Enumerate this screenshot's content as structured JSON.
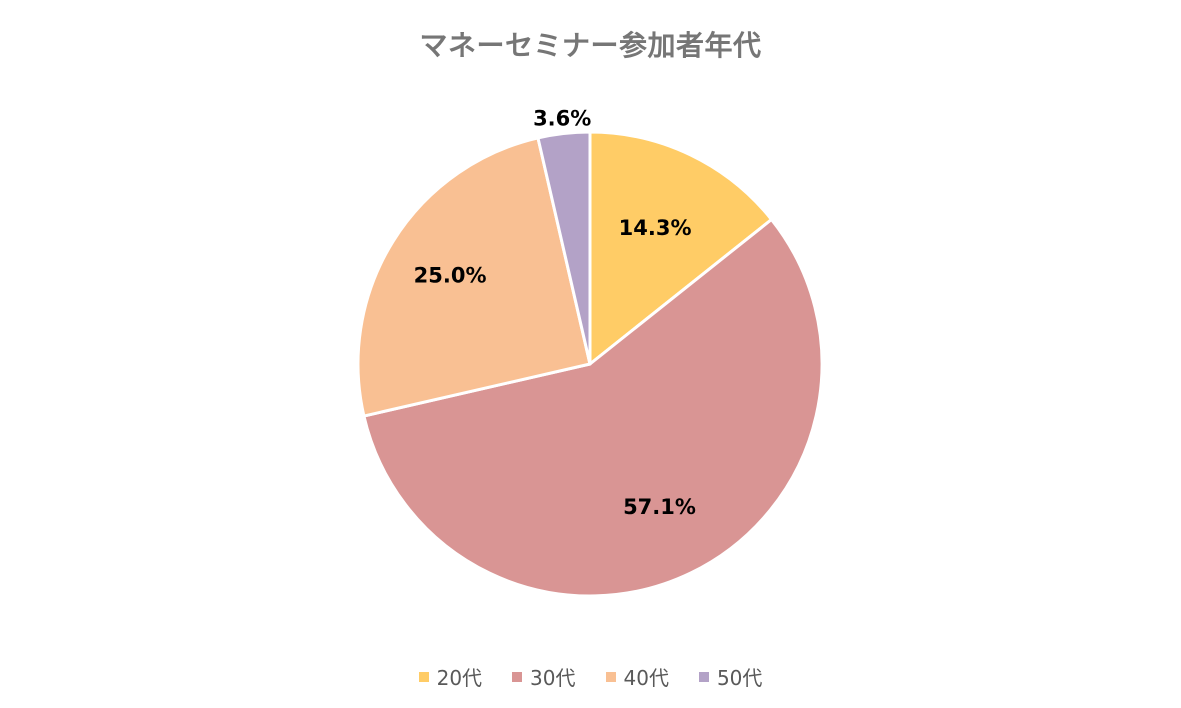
{
  "chart_data": {
    "type": "pie",
    "title": "マネーセミナー参加者年代",
    "categories": [
      "20代",
      "30代",
      "40代",
      "50代"
    ],
    "values": [
      14.3,
      57.1,
      25.0,
      3.6
    ],
    "data_labels": [
      "14.3%",
      "57.1%",
      "25.0%",
      "3.6%"
    ],
    "colors": [
      "#FFCC66",
      "#D99594",
      "#F9C093",
      "#B3A2C7"
    ],
    "legend_position": "bottom",
    "start_angle": "12 o'clock",
    "direction": "clockwise"
  }
}
